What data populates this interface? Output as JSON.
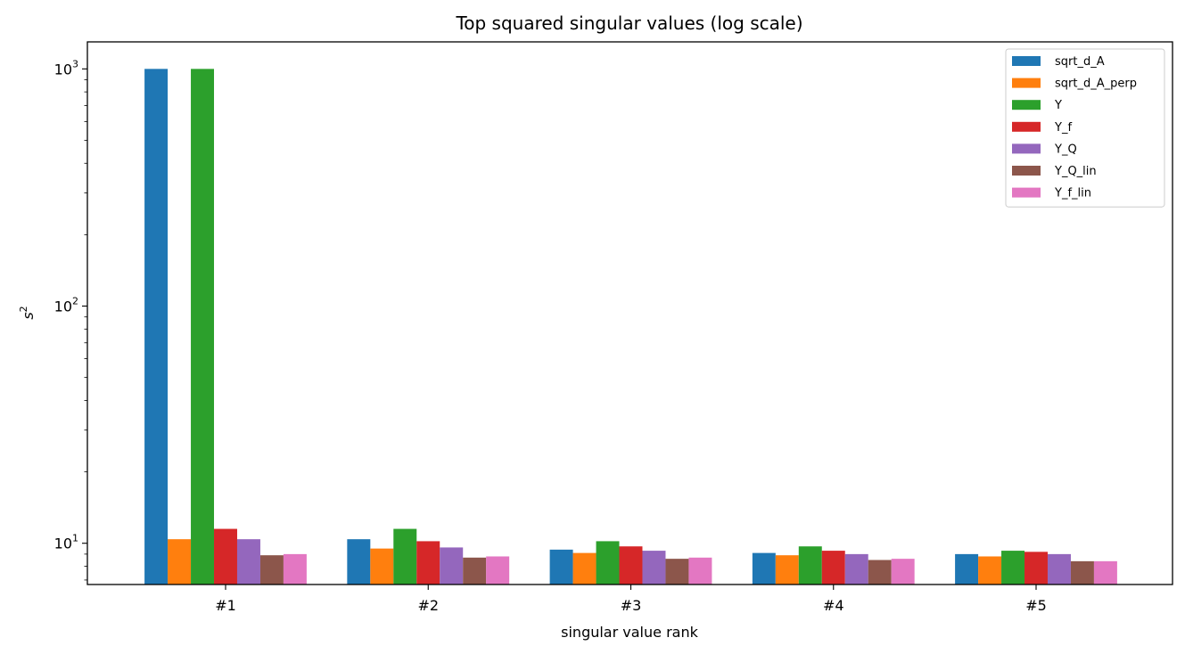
{
  "chart_data": {
    "type": "bar",
    "title": "Top squared singular values (log scale)",
    "xlabel": "singular value rank",
    "ylabel_base": "s",
    "ylabel_sup": "2",
    "yscale": "log",
    "ylim": [
      6.7,
      1300
    ],
    "y_ticks": [
      {
        "value": 10,
        "base": "10",
        "exp": "1"
      },
      {
        "value": 100,
        "base": "10",
        "exp": "2"
      },
      {
        "value": 1000,
        "base": "10",
        "exp": "3"
      }
    ],
    "grid": false,
    "legend_position": "top-right",
    "categories": [
      "#1",
      "#2",
      "#3",
      "#4",
      "#5"
    ],
    "series": [
      {
        "name": "sqrt_d_A",
        "color": "#1f77b4",
        "values": [
          1000,
          10.4,
          9.4,
          9.1,
          9.0
        ]
      },
      {
        "name": "sqrt_d_A_perp",
        "color": "#ff7f0e",
        "values": [
          10.4,
          9.5,
          9.1,
          8.9,
          8.8
        ]
      },
      {
        "name": "Y",
        "color": "#2ca02c",
        "values": [
          1000,
          11.5,
          10.2,
          9.7,
          9.3
        ]
      },
      {
        "name": "Y_f",
        "color": "#d62728",
        "values": [
          11.5,
          10.2,
          9.7,
          9.3,
          9.2
        ]
      },
      {
        "name": "Y_Q",
        "color": "#9467bd",
        "values": [
          10.4,
          9.6,
          9.3,
          9.0,
          9.0
        ]
      },
      {
        "name": "Y_Q_lin",
        "color": "#8c564b",
        "values": [
          8.9,
          8.7,
          8.6,
          8.5,
          8.4
        ]
      },
      {
        "name": "Y_f_lin",
        "color": "#e377c2",
        "values": [
          9.0,
          8.8,
          8.7,
          8.6,
          8.4
        ]
      }
    ]
  }
}
